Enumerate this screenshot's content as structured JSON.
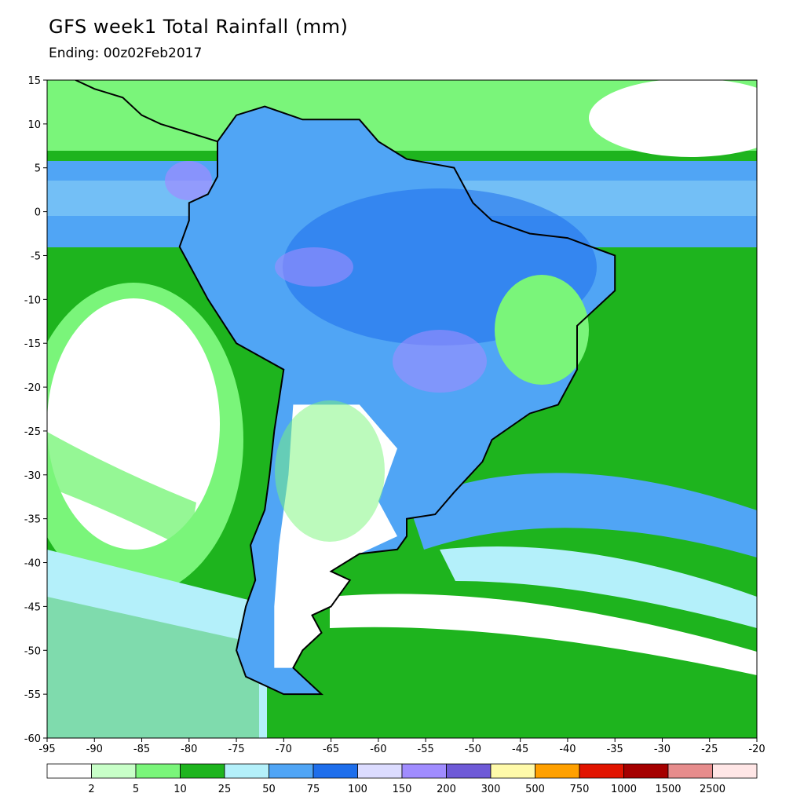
{
  "title": "GFS week1 Total Rainfall (mm)",
  "subtitle": "Ending: 00z02Feb2017",
  "map": {
    "projection": "lat-lon",
    "lon_range": [
      -95,
      -20
    ],
    "lat_range": [
      -60,
      15
    ],
    "x_ticks": [
      "-95",
      "-90",
      "-85",
      "-80",
      "-75",
      "-70",
      "-65",
      "-60",
      "-55",
      "-50",
      "-45",
      "-40",
      "-35",
      "-30",
      "-25",
      "-20"
    ],
    "y_ticks": [
      "15",
      "10",
      "5",
      "0",
      "-5",
      "-10",
      "-15",
      "-20",
      "-25",
      "-30",
      "-35",
      "-40",
      "-45",
      "-50",
      "-55",
      "-60"
    ]
  },
  "colorbar": {
    "colors": [
      "#ffffff",
      "#c8ffc8",
      "#7af57a",
      "#1eb41e",
      "#b4f0fa",
      "#50a5f5",
      "#1e6eeb",
      "#dcdcff",
      "#a08cff",
      "#6e5ad7",
      "#fffaaa",
      "#ffa000",
      "#e11400",
      "#a50000",
      "#e68c8c",
      "#ffe6e6"
    ],
    "labels": [
      "2",
      "5",
      "10",
      "25",
      "50",
      "75",
      "100",
      "150",
      "200",
      "300",
      "500",
      "750",
      "1000",
      "1500",
      "2500"
    ]
  }
}
